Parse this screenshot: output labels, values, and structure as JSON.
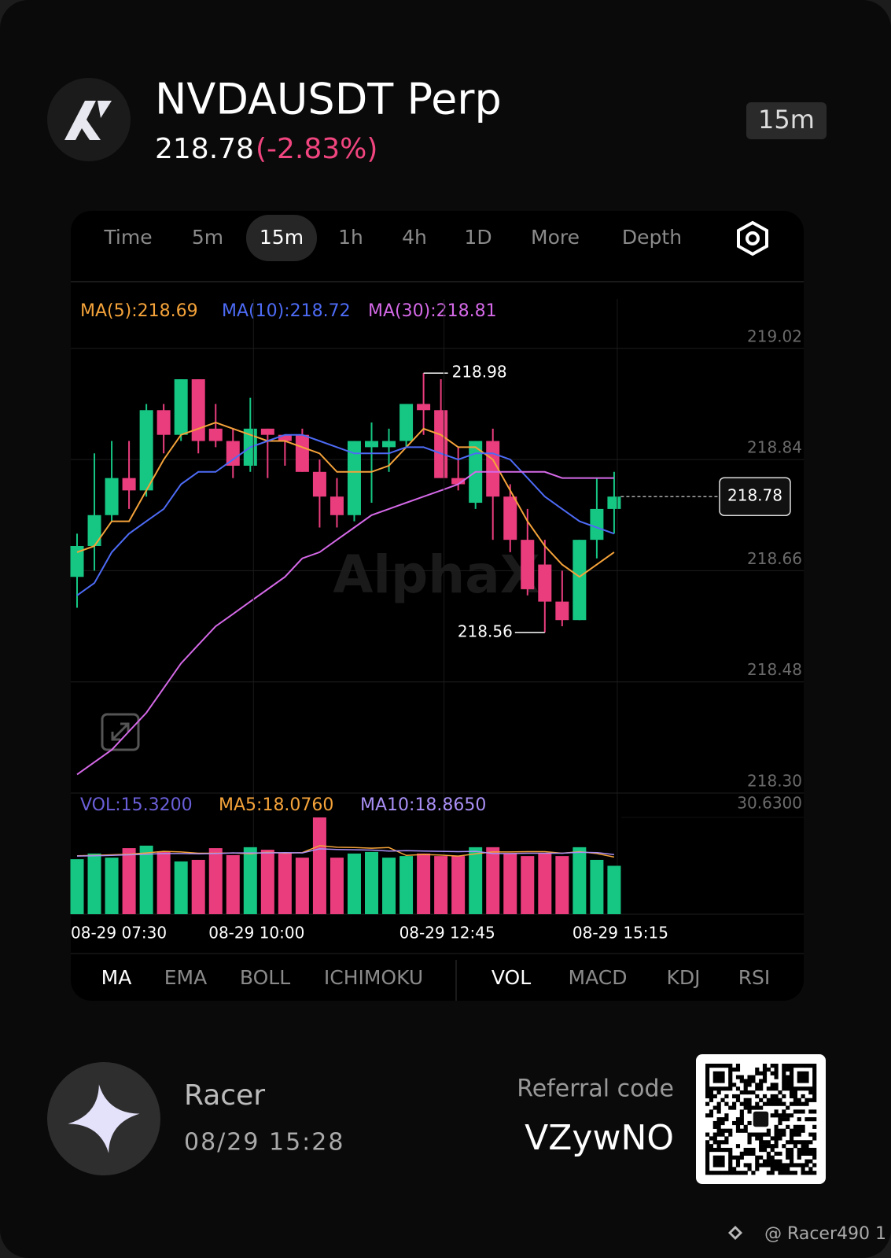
{
  "header": {
    "title": "NVDAUSDT Perp",
    "price": "218.78",
    "change": "(-2.83%)",
    "interval": "15m"
  },
  "tabs": [
    "Time",
    "5m",
    "15m",
    "1h",
    "4h",
    "1D",
    "More",
    "Depth"
  ],
  "selected_tab": "15m",
  "indicator_tabs": [
    "MA",
    "EMA",
    "BOLL",
    "ICHIMOKU"
  ],
  "sub_indicator_tabs": [
    "VOL",
    "MACD",
    "KDJ",
    "RSI"
  ],
  "chart_data": [
    {
      "type": "candlestick",
      "watermark": "AlphaX",
      "up_color": "#16c784",
      "down_color": "#ea3d7d",
      "open": [
        218.65,
        218.7,
        218.75,
        218.81,
        218.79,
        218.92,
        218.88,
        218.97,
        218.89,
        218.87,
        218.83,
        218.89,
        218.88,
        218.88,
        218.82,
        218.78,
        218.75,
        218.86,
        218.86,
        218.87,
        218.93,
        218.92,
        218.81,
        218.77,
        218.87,
        218.78,
        218.71,
        218.67,
        218.61,
        218.58,
        218.71,
        218.76
      ],
      "high": [
        218.72,
        218.85,
        218.87,
        218.87,
        218.93,
        218.93,
        218.97,
        218.97,
        218.93,
        218.89,
        218.94,
        218.89,
        218.88,
        218.89,
        218.84,
        218.81,
        218.87,
        218.9,
        218.89,
        218.93,
        218.98,
        218.97,
        218.86,
        218.87,
        218.89,
        218.8,
        218.76,
        218.71,
        218.66,
        218.71,
        218.81,
        218.82
      ],
      "low": [
        218.6,
        218.66,
        218.74,
        218.76,
        218.78,
        218.85,
        218.87,
        218.85,
        218.86,
        218.81,
        218.82,
        218.81,
        218.83,
        218.82,
        218.73,
        218.73,
        218.74,
        218.77,
        218.82,
        218.86,
        218.88,
        218.81,
        218.79,
        218.76,
        218.71,
        218.69,
        218.62,
        218.56,
        218.57,
        218.58,
        218.68,
        218.72
      ],
      "close": [
        218.7,
        218.75,
        218.81,
        218.79,
        218.92,
        218.88,
        218.97,
        218.87,
        218.87,
        218.83,
        218.89,
        218.88,
        218.87,
        218.82,
        218.78,
        218.75,
        218.87,
        218.87,
        218.87,
        218.93,
        218.92,
        218.81,
        218.8,
        218.87,
        218.78,
        218.71,
        218.63,
        218.61,
        218.58,
        218.71,
        218.76,
        218.78
      ],
      "series": [
        {
          "name": "MA(5):218.69",
          "color": "#f5a33a",
          "values": [
            218.69,
            218.7,
            218.74,
            218.74,
            218.79,
            218.84,
            218.88,
            218.89,
            218.9,
            218.89,
            218.88,
            218.87,
            218.87,
            218.86,
            218.85,
            218.82,
            218.82,
            218.82,
            218.83,
            218.86,
            218.89,
            218.88,
            218.86,
            218.86,
            218.84,
            218.79,
            218.74,
            218.7,
            218.67,
            218.65,
            218.67,
            218.69
          ]
        },
        {
          "name": "MA(10):218.72",
          "color": "#4d6bf5",
          "values": [
            218.62,
            218.64,
            218.69,
            218.72,
            218.74,
            218.76,
            218.8,
            218.82,
            218.82,
            218.84,
            218.86,
            218.87,
            218.88,
            218.88,
            218.87,
            218.86,
            218.85,
            218.85,
            218.85,
            218.86,
            218.86,
            218.85,
            218.84,
            218.85,
            218.85,
            218.84,
            218.81,
            218.78,
            218.76,
            218.74,
            218.73,
            218.72
          ]
        },
        {
          "name": "MA(30):218.81",
          "color": "#d569e8",
          "values": [
            218.33,
            218.35,
            218.37,
            218.4,
            218.43,
            218.47,
            218.51,
            218.54,
            218.57,
            218.59,
            218.61,
            218.63,
            218.65,
            218.68,
            218.69,
            218.71,
            218.73,
            218.75,
            218.76,
            218.77,
            218.78,
            218.79,
            218.8,
            218.82,
            218.82,
            218.82,
            218.82,
            218.82,
            218.81,
            218.81,
            218.81,
            218.81
          ]
        }
      ],
      "high_marker": 218.98,
      "low_marker": 218.56,
      "last_price": 218.78,
      "ylim": [
        218.3,
        219.1
      ],
      "yticks": [
        {
          "value": 218.3,
          "label": "218.30"
        },
        218.48,
        218.66,
        218.84,
        219.02
      ],
      "grid": true
    },
    {
      "type": "bar",
      "categories": [
        "08-29 07:30",
        null,
        null,
        null,
        null,
        null,
        null,
        null,
        null,
        null,
        "08-29 10:00",
        null,
        null,
        null,
        null,
        null,
        null,
        null,
        null,
        null,
        null,
        "08-29 12:45",
        null,
        null,
        null,
        null,
        null,
        null,
        null,
        null,
        null,
        "08-29 15:15"
      ],
      "series": [
        {
          "name": "VOL:15.3200",
          "type": "bar",
          "color": "#6a5fd8",
          "values": [
            17.4,
            19.2,
            17.9,
            20.9,
            21.7,
            19.9,
            16.7,
            17.2,
            20.9,
            18.7,
            21.2,
            20.4,
            19.2,
            17.9,
            30.63,
            17.9,
            19.2,
            19.7,
            17.9,
            18.4,
            19.2,
            18.4,
            18.4,
            21.2,
            21.2,
            19.2,
            18.4,
            19.2,
            18.4,
            21.2,
            17.2,
            15.32
          ]
        },
        {
          "name": "MA5:18.0760",
          "type": "line",
          "color": "#f5a33a",
          "values": [
            18.5,
            18.6,
            18.8,
            19.0,
            19.4,
            19.9,
            19.7,
            19.3,
            19.3,
            19.4,
            19.1,
            19.6,
            19.3,
            19.5,
            21.7,
            21.2,
            21.1,
            20.9,
            21.1,
            18.6,
            18.9,
            18.7,
            18.4,
            19.1,
            19.7,
            19.7,
            19.8,
            19.8,
            19.3,
            19.8,
            19.2,
            18.076
          ]
        },
        {
          "name": "MA10:18.8650",
          "type": "line",
          "color": "#a98ff5",
          "values": [
            18.4,
            18.5,
            18.6,
            18.8,
            19.0,
            19.2,
            19.2,
            19.1,
            19.2,
            19.4,
            19.4,
            19.4,
            19.5,
            19.4,
            20.7,
            20.5,
            20.4,
            20.3,
            20.0,
            20.1,
            20.0,
            19.9,
            19.8,
            19.9,
            19.2,
            19.2,
            19.3,
            19.3,
            19.3,
            19.6,
            19.5,
            18.865
          ]
        }
      ],
      "ylim": [
        0,
        30.63
      ],
      "yticks": [
        {
          "value": 30.63,
          "label": "30.6300"
        }
      ]
    }
  ],
  "footer": {
    "user": "Racer",
    "datetime": "08/29 15:28",
    "referral_label": "Referral code",
    "referral_code": "VZywNO",
    "handle": "@ Racer490 1"
  }
}
